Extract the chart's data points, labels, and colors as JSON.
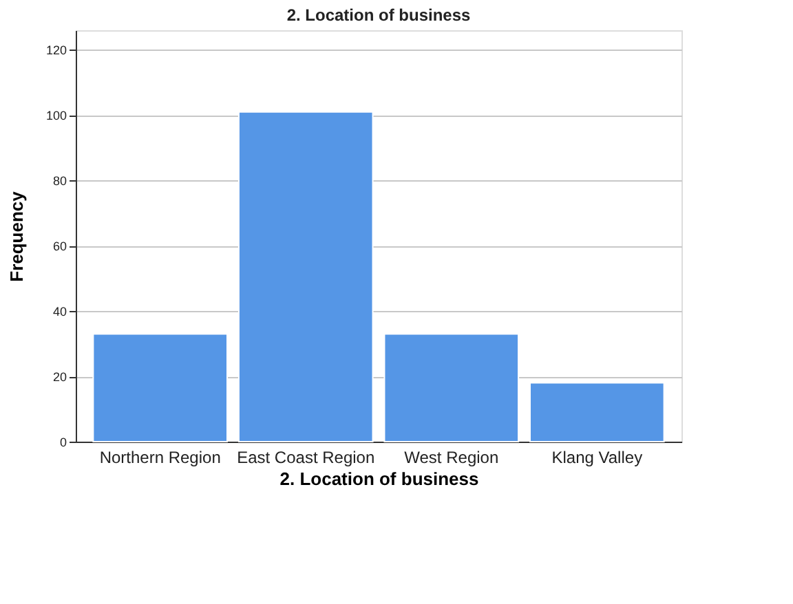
{
  "chart_data": {
    "type": "bar",
    "title": "2. Location of business",
    "xlabel": "2. Location of business",
    "ylabel": "Frequency",
    "categories": [
      "Northern Region",
      "East Coast Region",
      "West Region",
      "Klang Valley"
    ],
    "values": [
      33,
      101,
      33,
      18
    ],
    "color": "#5596e6",
    "ylim": [
      0,
      126
    ],
    "yticks": [
      0,
      20,
      40,
      60,
      80,
      100,
      120
    ],
    "grid": "y"
  }
}
